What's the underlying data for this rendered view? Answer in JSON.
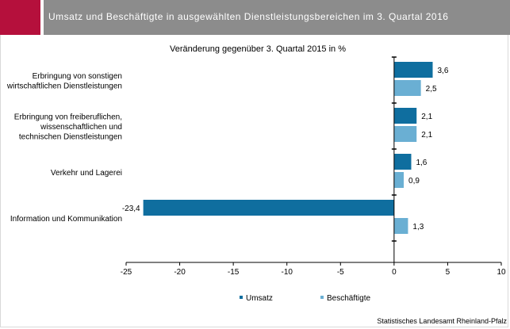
{
  "title": "Umsatz und Beschäftigte in ausgewählten Dienstleistungsbereichen im 3. Quartal 2016",
  "source": "Statistisches Landesamt Rheinland-Pfalz",
  "colors": {
    "header": "#8c8c8c",
    "accent": "#b5103c",
    "umsatz": "#0f6e9f",
    "beschaeftigte": "#6aafd3"
  },
  "chart_data": {
    "type": "bar",
    "orientation": "horizontal",
    "subtitle": "Veränderung gegenüber 3. Quartal 2015 in %",
    "categories": [
      [
        "Erbringung von sonstigen",
        "wirtschaftlichen Dienstleistungen"
      ],
      [
        "Erbringung von freiberuflichen,",
        "wissenschaftlichen und",
        "technischen Dienstleistungen"
      ],
      [
        "Verkehr und Lagerei"
      ],
      [
        "Information und Kommunikation"
      ]
    ],
    "series": [
      {
        "name": "Umsatz",
        "color": "#0f6e9f",
        "values": [
          3.6,
          2.1,
          1.6,
          -23.4
        ],
        "labels": [
          "3,6",
          "2,1",
          "1,6",
          "-23,4"
        ]
      },
      {
        "name": "Beschäftigte",
        "color": "#6aafd3",
        "values": [
          2.5,
          2.1,
          0.9,
          1.3
        ],
        "labels": [
          "2,5",
          "2,1",
          "0,9",
          "1,3"
        ]
      }
    ],
    "xlim": [
      -25,
      10
    ],
    "xticks": [
      -25,
      -20,
      -15,
      -10,
      -5,
      0,
      5,
      10
    ],
    "xtick_labels": [
      "-25",
      "-20",
      "-15",
      "-10",
      "-5",
      "0",
      "5",
      "10"
    ],
    "grid": false,
    "legend": "bottom"
  }
}
